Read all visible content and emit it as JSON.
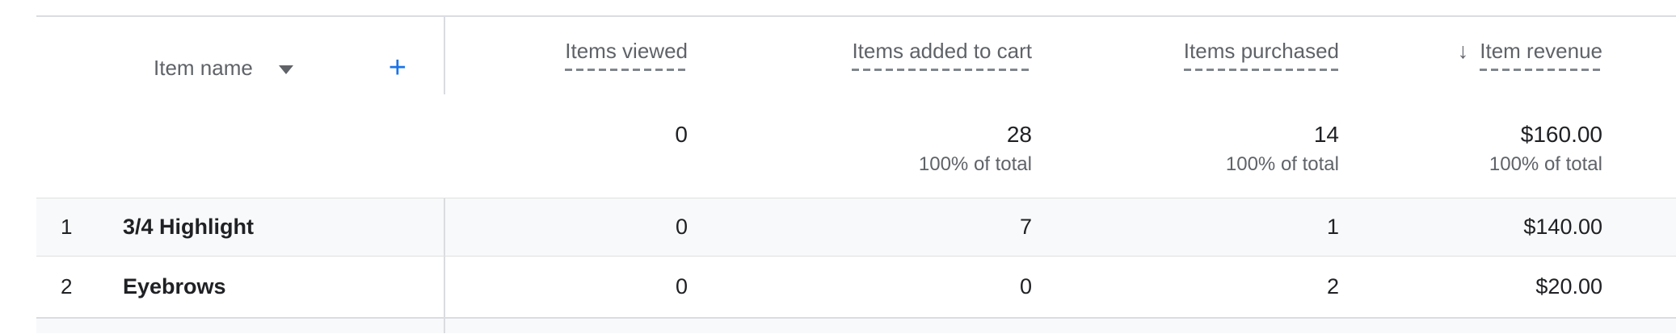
{
  "table": {
    "dimension_header": {
      "label": "Item name",
      "add_button_label": "+"
    },
    "columns": [
      {
        "label": "Items viewed",
        "sorted": false
      },
      {
        "label": "Items added to cart",
        "sorted": false
      },
      {
        "label": "Items purchased",
        "sorted": false
      },
      {
        "label": "Item revenue",
        "sorted": true,
        "sort_icon": "↓",
        "sort_direction": "descending"
      }
    ],
    "totals": {
      "values": [
        "0",
        "28",
        "14",
        "$160.00"
      ],
      "subs": [
        "",
        "100% of total",
        "100% of total",
        "100% of total"
      ]
    },
    "rows": [
      {
        "index": "1",
        "name": "3/4 Highlight",
        "values": [
          "0",
          "7",
          "1",
          "$140.00"
        ]
      },
      {
        "index": "2",
        "name": "Eyebrows",
        "values": [
          "0",
          "0",
          "2",
          "$20.00"
        ]
      }
    ]
  },
  "colors": {
    "accent_blue": "#1a73e8",
    "text_dark": "#202124",
    "text_gray": "#5f6368",
    "dash_gray": "#80868b",
    "row_alt_bg": "#f8f9fa",
    "border_gray": "#dadce0",
    "row_border": "#e0e0e0"
  }
}
